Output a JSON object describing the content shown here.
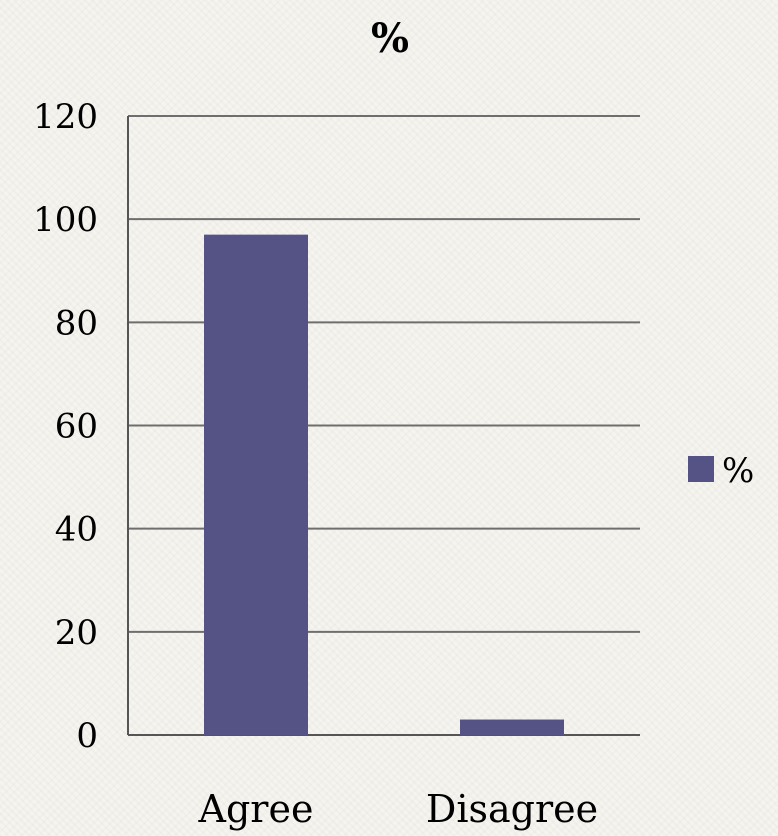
{
  "chart_data": {
    "type": "bar",
    "title": "%",
    "xlabel": "",
    "ylabel": "",
    "categories": [
      "Agree",
      "Disagree"
    ],
    "series": [
      {
        "name": "%",
        "values": [
          97,
          3
        ]
      }
    ],
    "ylim": [
      0,
      120
    ],
    "yticks": [
      0,
      20,
      40,
      60,
      80,
      100,
      120
    ],
    "grid": true,
    "legend": "right",
    "colors": {
      "bar": "#555386",
      "grid": "#6e6e6e",
      "axis": "#555555",
      "text": "#111111"
    }
  }
}
